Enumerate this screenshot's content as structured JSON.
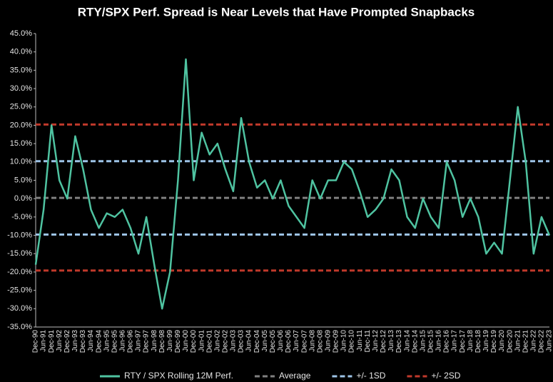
{
  "chart_data": {
    "type": "line",
    "title": "RTY/SPX Perf. Spread is Near Levels that Have Prompted Snapbacks",
    "categories": [
      "Dec-90",
      "Jun-91",
      "Dec-91",
      "Jun-92",
      "Dec-92",
      "Jun-93",
      "Dec-93",
      "Jun-94",
      "Dec-94",
      "Jun-95",
      "Dec-95",
      "Jun-96",
      "Dec-96",
      "Jun-97",
      "Dec-97",
      "Jun-98",
      "Dec-98",
      "Jun-99",
      "Dec-99",
      "Jun-00",
      "Dec-00",
      "Jun-01",
      "Dec-01",
      "Jun-02",
      "Dec-02",
      "Jun-03",
      "Dec-03",
      "Jun-04",
      "Dec-04",
      "Jun-05",
      "Dec-05",
      "Jun-06",
      "Dec-06",
      "Jun-07",
      "Dec-07",
      "Jun-08",
      "Dec-08",
      "Jun-09",
      "Dec-09",
      "Jun-10",
      "Dec-10",
      "Jun-11",
      "Dec-11",
      "Jun-12",
      "Dec-12",
      "Jun-13",
      "Dec-13",
      "Jun-14",
      "Dec-14",
      "Jun-15",
      "Dec-15",
      "Jun-16",
      "Dec-16",
      "Jun-17",
      "Dec-17",
      "Jun-18",
      "Dec-18",
      "Jun-19",
      "Dec-19",
      "Jun-20",
      "Dec-20",
      "Jun-21",
      "Dec-21",
      "Jun-22",
      "Dec-22",
      "Jun-23"
    ],
    "series": [
      {
        "name": "RTY / SPX Rolling 12M Perf.",
        "color": "#4fc3a1",
        "values": [
          -18,
          -3,
          20,
          5,
          0,
          17,
          8,
          -3,
          -8,
          -4,
          -5,
          -3,
          -8,
          -15,
          -5,
          -18,
          -30,
          -20,
          5,
          38,
          5,
          18,
          12,
          15,
          8,
          2,
          22,
          10,
          3,
          5,
          0,
          5,
          -2,
          -5,
          -8,
          5,
          0,
          5,
          5,
          10,
          8,
          2,
          -5,
          -3,
          0,
          8,
          5,
          -5,
          -8,
          0,
          -5,
          -8,
          10,
          5,
          -5,
          0,
          -5,
          -15,
          -12,
          -15,
          5,
          25,
          10,
          -15,
          -5,
          -10
        ]
      }
    ],
    "reference_lines": [
      {
        "name": "Average",
        "value": 0.2,
        "color": "#808080"
      },
      {
        "name": "+/- 1SD",
        "value": 10.2,
        "color": "#9dc3e6"
      },
      {
        "value": -9.8,
        "color": "#9dc3e6"
      },
      {
        "name": "+/- 2SD",
        "value": 20.2,
        "color": "#c0392b"
      },
      {
        "value": -19.6,
        "color": "#c0392b"
      }
    ],
    "ylim": [
      -35,
      45
    ],
    "yticks": [
      {
        "value": -35,
        "label": "-35.0%"
      },
      {
        "value": -30,
        "label": "-30.0%"
      },
      {
        "value": -25,
        "label": "-25.0%"
      },
      {
        "value": -20,
        "label": "-20.0%"
      },
      {
        "value": -15,
        "label": "-15.0%"
      },
      {
        "value": -10,
        "label": "-10.0%"
      },
      {
        "value": -5,
        "label": "-5.0%"
      },
      {
        "value": 0,
        "label": "0.0%"
      },
      {
        "value": 5,
        "label": "5.0%"
      },
      {
        "value": 10,
        "label": "10.0%"
      },
      {
        "value": 15,
        "label": "15.0%"
      },
      {
        "value": 20,
        "label": "20.0%"
      },
      {
        "value": 25,
        "label": "25.0%"
      },
      {
        "value": 30,
        "label": "30.0%"
      },
      {
        "value": 35,
        "label": "35.0%"
      },
      {
        "value": 40,
        "label": "40.0%"
      },
      {
        "value": 45,
        "label": "45.0%"
      }
    ]
  }
}
